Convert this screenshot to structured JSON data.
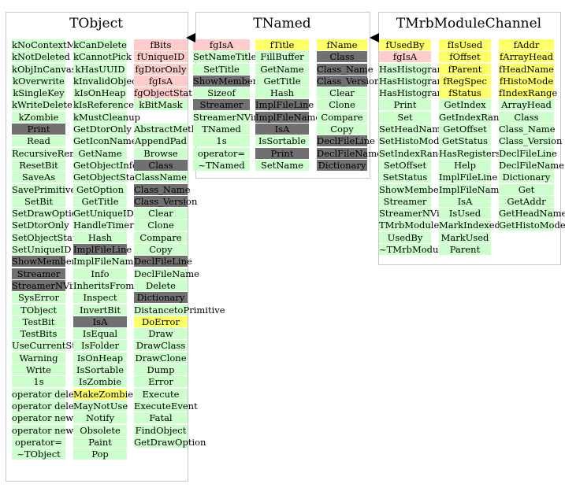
{
  "panels": [
    {
      "title": "TObject",
      "columns": [
        {
          "cells": [
            [
              "kNoContextMenu",
              "g"
            ],
            [
              "kNotDeleted",
              "g"
            ],
            [
              "kObjInCanvas",
              "g"
            ],
            [
              "kOverwrite",
              "g"
            ],
            [
              "kSingleKey",
              "g"
            ],
            [
              "kWriteDelete",
              "g"
            ],
            [
              "kZombie",
              "g"
            ],
            [
              "Print",
              "d"
            ],
            [
              "Read",
              "g"
            ],
            [
              "RecursiveRemove",
              "g"
            ],
            [
              "ResetBit",
              "g"
            ],
            [
              "SaveAs",
              "g"
            ],
            [
              "SavePrimitive",
              "g"
            ],
            [
              "SetBit",
              "g"
            ],
            [
              "SetDrawOption",
              "g"
            ],
            [
              "SetDtorOnly",
              "g"
            ],
            [
              "SetObjectStat",
              "g"
            ],
            [
              "SetUniqueID",
              "g"
            ],
            [
              "ShowMembers",
              "d"
            ],
            [
              "Streamer",
              "d"
            ],
            [
              "StreamerNVirtual",
              "d"
            ],
            [
              "SysError",
              "g"
            ],
            [
              "TObject",
              "g"
            ],
            [
              "TestBit",
              "g"
            ],
            [
              "TestBits",
              "g"
            ],
            [
              "UseCurrentStyle",
              "g"
            ],
            [
              "Warning",
              "g"
            ],
            [
              "Write",
              "g"
            ],
            [
              "1s",
              "g"
            ],
            [
              "operator delete",
              "g"
            ],
            [
              "operator delete[]",
              "g"
            ],
            [
              "operator new",
              "g"
            ],
            [
              "operator new[]",
              "g"
            ],
            [
              "operator=",
              "g"
            ],
            [
              "~TObject",
              "g"
            ]
          ]
        },
        {
          "cells": [
            [
              "kCanDelete",
              "g"
            ],
            [
              "kCannotPick",
              "g"
            ],
            [
              "kHasUUID",
              "g"
            ],
            [
              "kInvalidObject",
              "g"
            ],
            [
              "kIsOnHeap",
              "g"
            ],
            [
              "kIsReferenced",
              "g"
            ],
            [
              "kMustCleanup",
              "g"
            ],
            [
              "GetDtorOnly",
              "g"
            ],
            [
              "GetIconName",
              "g"
            ],
            [
              "GetName",
              "g"
            ],
            [
              "GetObjectInfo",
              "g"
            ],
            [
              "GetObjectStat",
              "g"
            ],
            [
              "GetOption",
              "g"
            ],
            [
              "GetTitle",
              "g"
            ],
            [
              "GetUniqueID",
              "g"
            ],
            [
              "HandleTimer",
              "g"
            ],
            [
              "Hash",
              "g"
            ],
            [
              "ImplFileLine",
              "d"
            ],
            [
              "ImplFileName",
              "g"
            ],
            [
              "Info",
              "g"
            ],
            [
              "InheritsFrom",
              "g"
            ],
            [
              "Inspect",
              "g"
            ],
            [
              "InvertBit",
              "g"
            ],
            [
              "IsA",
              "d"
            ],
            [
              "IsEqual",
              "g"
            ],
            [
              "IsFolder",
              "g"
            ],
            [
              "IsOnHeap",
              "g"
            ],
            [
              "IsSortable",
              "g"
            ],
            [
              "IsZombie",
              "g"
            ],
            [
              "MakeZombie",
              "y"
            ],
            [
              "MayNotUse",
              "g"
            ],
            [
              "Notify",
              "g"
            ],
            [
              "Obsolete",
              "g"
            ],
            [
              "Paint",
              "g"
            ],
            [
              "Pop",
              "g"
            ]
          ]
        },
        {
          "cells": [
            [
              "fBits",
              "p"
            ],
            [
              "fUniqueID",
              "p"
            ],
            [
              "fgDtorOnly",
              "p"
            ],
            [
              "fgIsA",
              "p"
            ],
            [
              "fgObjectStat",
              "p"
            ],
            [
              "kBitMask",
              "g"
            ],
            [
              "",
              "w"
            ],
            [
              "AbstractMethod",
              "g"
            ],
            [
              "AppendPad",
              "g"
            ],
            [
              "Browse",
              "g"
            ],
            [
              "Class",
              "d"
            ],
            [
              "ClassName",
              "g"
            ],
            [
              "Class_Name",
              "d"
            ],
            [
              "Class_Version",
              "d"
            ],
            [
              "Clear",
              "g"
            ],
            [
              "Clone",
              "g"
            ],
            [
              "Compare",
              "g"
            ],
            [
              "Copy",
              "g"
            ],
            [
              "DeclFileLine",
              "d"
            ],
            [
              "DeclFileName",
              "g"
            ],
            [
              "Delete",
              "g"
            ],
            [
              "Dictionary",
              "d"
            ],
            [
              "DistancetoPrimitive",
              "g"
            ],
            [
              "DoError",
              "y"
            ],
            [
              "Draw",
              "g"
            ],
            [
              "DrawClass",
              "g"
            ],
            [
              "DrawClone",
              "g"
            ],
            [
              "Dump",
              "g"
            ],
            [
              "Error",
              "g"
            ],
            [
              "Execute",
              "g"
            ],
            [
              "ExecuteEvent",
              "g"
            ],
            [
              "Fatal",
              "g"
            ],
            [
              "FindObject",
              "g"
            ],
            [
              "GetDrawOption",
              "g"
            ]
          ]
        }
      ]
    },
    {
      "title": "TNamed",
      "columns": [
        {
          "cells": [
            [
              "fgIsA",
              "p"
            ],
            [
              "SetNameTitle",
              "g"
            ],
            [
              "SetTitle",
              "g"
            ],
            [
              "ShowMembers",
              "d"
            ],
            [
              "Sizeof",
              "g"
            ],
            [
              "Streamer",
              "d"
            ],
            [
              "StreamerNVirtual",
              "g"
            ],
            [
              "TNamed",
              "g"
            ],
            [
              "1s",
              "g"
            ],
            [
              "operator=",
              "g"
            ],
            [
              "~TNamed",
              "g"
            ]
          ]
        },
        {
          "cells": [
            [
              "fTitle",
              "y"
            ],
            [
              "FillBuffer",
              "g"
            ],
            [
              "GetName",
              "g"
            ],
            [
              "GetTitle",
              "g"
            ],
            [
              "Hash",
              "g"
            ],
            [
              "ImplFileLine",
              "d"
            ],
            [
              "ImplFileName",
              "d"
            ],
            [
              "IsA",
              "d"
            ],
            [
              "IsSortable",
              "g"
            ],
            [
              "Print",
              "d"
            ],
            [
              "SetName",
              "g"
            ]
          ]
        },
        {
          "cells": [
            [
              "fName",
              "y"
            ],
            [
              "Class",
              "d"
            ],
            [
              "Class_Name",
              "d"
            ],
            [
              "Class_Version",
              "d"
            ],
            [
              "Clear",
              "g"
            ],
            [
              "Clone",
              "g"
            ],
            [
              "Compare",
              "g"
            ],
            [
              "Copy",
              "g"
            ],
            [
              "DeclFileLine",
              "d"
            ],
            [
              "DeclFileName",
              "d"
            ],
            [
              "Dictionary",
              "d"
            ]
          ]
        }
      ]
    },
    {
      "title": "TMrbModuleChannel",
      "columns": [
        {
          "cells": [
            [
              "fUsedBy",
              "y"
            ],
            [
              "fgIsA",
              "p"
            ],
            [
              "HasHistogramDefault",
              "g"
            ],
            [
              "HasHistogramFalse",
              "g"
            ],
            [
              "HasHistogramTrue",
              "g"
            ],
            [
              "Print",
              "g"
            ],
            [
              "Set",
              "g"
            ],
            [
              "SetHeadName",
              "g"
            ],
            [
              "SetHistoMode",
              "g"
            ],
            [
              "SetIndexRange",
              "g"
            ],
            [
              "SetOffset",
              "g"
            ],
            [
              "SetStatus",
              "g"
            ],
            [
              "ShowMembers",
              "g"
            ],
            [
              "Streamer",
              "g"
            ],
            [
              "StreamerNVirtual",
              "g"
            ],
            [
              "TMrbModuleChannel",
              "g"
            ],
            [
              "UsedBy",
              "g"
            ],
            [
              "~TMrbModuleChannel",
              "g"
            ]
          ]
        },
        {
          "cells": [
            [
              "fIsUsed",
              "y"
            ],
            [
              "fOffset",
              "y"
            ],
            [
              "fParent",
              "y"
            ],
            [
              "fRegSpec",
              "y"
            ],
            [
              "fStatus",
              "y"
            ],
            [
              "GetIndex",
              "g"
            ],
            [
              "GetIndexRange",
              "g"
            ],
            [
              "GetOffset",
              "g"
            ],
            [
              "GetStatus",
              "g"
            ],
            [
              "HasRegisters",
              "g"
            ],
            [
              "Help",
              "g"
            ],
            [
              "ImplFileLine",
              "g"
            ],
            [
              "ImplFileName",
              "g"
            ],
            [
              "IsA",
              "g"
            ],
            [
              "IsUsed",
              "g"
            ],
            [
              "MarkIndexed",
              "g"
            ],
            [
              "MarkUsed",
              "g"
            ],
            [
              "Parent",
              "g"
            ]
          ]
        },
        {
          "cells": [
            [
              "fAddr",
              "y"
            ],
            [
              "fArrayHead",
              "y"
            ],
            [
              "fHeadName",
              "y"
            ],
            [
              "fHistoMode",
              "y"
            ],
            [
              "fIndexRange",
              "y"
            ],
            [
              "ArrayHead",
              "g"
            ],
            [
              "Class",
              "g"
            ],
            [
              "Class_Name",
              "g"
            ],
            [
              "Class_Version",
              "g"
            ],
            [
              "DeclFileLine",
              "g"
            ],
            [
              "DeclFileName",
              "g"
            ],
            [
              "Dictionary",
              "g"
            ],
            [
              "Get",
              "g"
            ],
            [
              "GetAddr",
              "g"
            ],
            [
              "GetHeadName",
              "g"
            ],
            [
              "GetHistoMode",
              "g"
            ]
          ]
        }
      ]
    }
  ]
}
